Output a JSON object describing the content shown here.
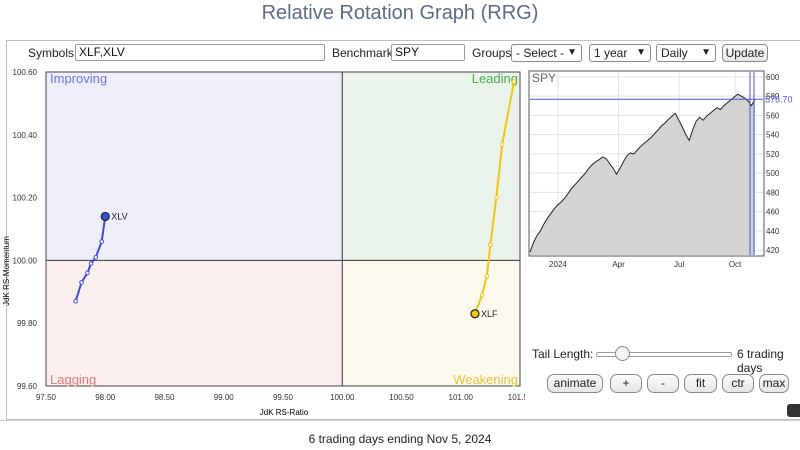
{
  "title": "Relative Rotation Graph (RRG)",
  "toolbar": {
    "symbols_label": "Symbols:",
    "symbols_value": "XLF,XLV",
    "benchmark_label": "Benchmark:",
    "benchmark_value": "SPY",
    "groups_label": "Groups:",
    "groups_value": "- Select -",
    "period_value": "1 year",
    "interval_value": "Daily",
    "update_label": "Update"
  },
  "rrg": {
    "quadrants": {
      "improving": "Improving",
      "leading": "Leading",
      "lagging": "Lagging",
      "weakening": "Weakening"
    },
    "colors": {
      "improving": "#eeeefa",
      "leading": "#eaf3ea",
      "lagging": "#fbeeee",
      "weakening": "#fbf9ee",
      "improving_text": "#6f74e0",
      "leading_text": "#4cab4c",
      "lagging_text": "#e07b7b",
      "weakening_text": "#e6c23a"
    },
    "x_axis_label": "JdK RS-Ratio",
    "y_axis_label": "JdK RS-Momentum",
    "x_ticks": [
      "97.50",
      "98.00",
      "98.50",
      "99.00",
      "99.50",
      "100.00",
      "100.50",
      "101.00",
      "101.50"
    ],
    "y_ticks": [
      "100.60",
      "100.40",
      "100.20",
      "100.00",
      "99.80",
      "99.60"
    ]
  },
  "chart_data": [
    {
      "type": "scatter",
      "title": "",
      "xlabel": "JdK RS-Ratio",
      "ylabel": "JdK RS-Momentum",
      "xlim": [
        97.5,
        101.5
      ],
      "ylim": [
        99.6,
        100.6
      ],
      "center": [
        100.0,
        100.0
      ],
      "series": [
        {
          "name": "XLV",
          "color": "#3b4fd6",
          "x": [
            97.75,
            97.8,
            97.85,
            97.88,
            97.92,
            97.97,
            98.0
          ],
          "y": [
            99.87,
            99.93,
            99.96,
            99.99,
            100.01,
            100.06,
            100.14
          ]
        },
        {
          "name": "XLF",
          "color": "#f0c419",
          "x": [
            101.45,
            101.35,
            101.3,
            101.25,
            101.22,
            101.18,
            101.12
          ],
          "y": [
            100.57,
            100.37,
            100.2,
            100.05,
            99.95,
            99.89,
            99.83
          ]
        }
      ]
    },
    {
      "type": "area",
      "title": "SPY",
      "x_ticks": [
        "2024",
        "Apr",
        "Jul",
        "Oct"
      ],
      "y_ticks": [
        420,
        440,
        460,
        480,
        500,
        520,
        540,
        560,
        580,
        600
      ],
      "ylim": [
        415,
        605
      ],
      "last_value_label": "576.70",
      "series": [
        {
          "name": "SPY",
          "color": "#222222",
          "values": [
            418,
            428,
            435,
            440,
            447,
            453,
            458,
            463,
            467,
            470,
            474,
            479,
            484,
            488,
            492,
            496,
            500,
            505,
            509,
            512,
            514,
            517,
            515,
            510,
            505,
            499,
            505,
            512,
            518,
            521,
            520,
            524,
            528,
            531,
            534,
            537,
            541,
            545,
            549,
            552,
            556,
            559,
            562,
            555,
            548,
            540,
            534,
            545,
            554,
            558,
            555,
            559,
            562,
            565,
            568,
            566,
            570,
            573,
            576,
            579,
            582,
            580,
            578,
            575,
            570,
            576.7
          ]
        }
      ]
    }
  ],
  "controls": {
    "tail_length_label": "Tail Length:",
    "tail_length_value": "6 trading days",
    "tail_fraction": 0.2,
    "animate": "animate",
    "plus": "+",
    "minus": "-",
    "fit": "fit",
    "ctr": "ctr",
    "max": "max"
  },
  "footer": "6 trading days ending Nov 5, 2024"
}
